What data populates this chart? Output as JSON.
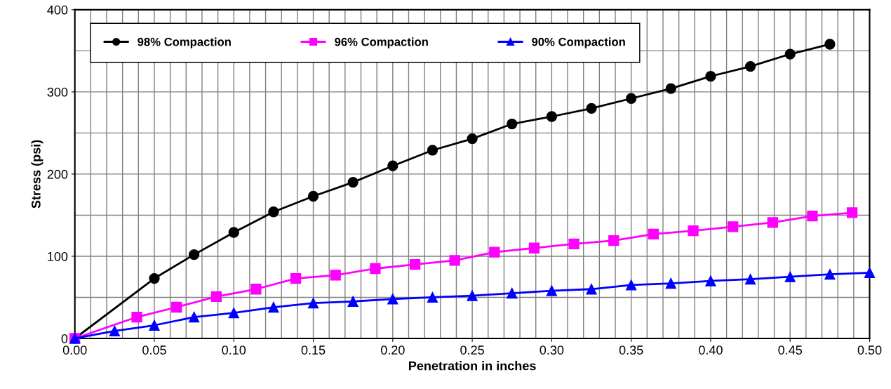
{
  "chart_data": {
    "type": "line",
    "xlabel": "Penetration in inches",
    "ylabel": "Stress (psi)",
    "xlim": [
      0,
      0.5
    ],
    "ylim": [
      0,
      400
    ],
    "xticks": [
      {
        "value": 0,
        "label": "0.00"
      },
      {
        "value": 0.01,
        "label": null
      },
      {
        "value": 0.02,
        "label": null
      },
      {
        "value": 0.03,
        "label": null
      },
      {
        "value": 0.04,
        "label": null
      },
      {
        "value": 0.05,
        "label": "0.05"
      },
      {
        "value": 0.06,
        "label": null
      },
      {
        "value": 0.07,
        "label": null
      },
      {
        "value": 0.08,
        "label": null
      },
      {
        "value": 0.09,
        "label": null
      },
      {
        "value": 0.1,
        "label": "0.10"
      },
      {
        "value": 0.11,
        "label": null
      },
      {
        "value": 0.12,
        "label": null
      },
      {
        "value": 0.13,
        "label": null
      },
      {
        "value": 0.14,
        "label": null
      },
      {
        "value": 0.15,
        "label": "0.15"
      },
      {
        "value": 0.16,
        "label": null
      },
      {
        "value": 0.17,
        "label": null
      },
      {
        "value": 0.18,
        "label": null
      },
      {
        "value": 0.19,
        "label": null
      },
      {
        "value": 0.2,
        "label": "0.20"
      },
      {
        "value": 0.21,
        "label": null
      },
      {
        "value": 0.22,
        "label": null
      },
      {
        "value": 0.23,
        "label": null
      },
      {
        "value": 0.24,
        "label": null
      },
      {
        "value": 0.25,
        "label": "0.25"
      },
      {
        "value": 0.26,
        "label": null
      },
      {
        "value": 0.27,
        "label": null
      },
      {
        "value": 0.28,
        "label": null
      },
      {
        "value": 0.29,
        "label": null
      },
      {
        "value": 0.3,
        "label": "0.30"
      },
      {
        "value": 0.31,
        "label": null
      },
      {
        "value": 0.32,
        "label": null
      },
      {
        "value": 0.33,
        "label": null
      },
      {
        "value": 0.34,
        "label": null
      },
      {
        "value": 0.35,
        "label": "0.35"
      },
      {
        "value": 0.36,
        "label": null
      },
      {
        "value": 0.37,
        "label": null
      },
      {
        "value": 0.38,
        "label": null
      },
      {
        "value": 0.39,
        "label": null
      },
      {
        "value": 0.4,
        "label": "0.40"
      },
      {
        "value": 0.41,
        "label": null
      },
      {
        "value": 0.42,
        "label": null
      },
      {
        "value": 0.43,
        "label": null
      },
      {
        "value": 0.44,
        "label": null
      },
      {
        "value": 0.45,
        "label": "0.45"
      },
      {
        "value": 0.46,
        "label": null
      },
      {
        "value": 0.47,
        "label": null
      },
      {
        "value": 0.48,
        "label": null
      },
      {
        "value": 0.49,
        "label": null
      },
      {
        "value": 0.5,
        "label": "0.50"
      }
    ],
    "yticks": [
      0,
      {
        "value": 50,
        "label": null
      },
      100,
      {
        "value": 150,
        "label": null
      },
      200,
      {
        "value": 250,
        "label": null
      },
      300,
      {
        "value": 350,
        "label": null
      },
      400
    ],
    "grid": true,
    "legend": "top",
    "line_style": "solid",
    "series": [
      {
        "name": "98% Compaction",
        "color": "#000000",
        "marker": "circle",
        "x": [
          0,
          0.05,
          0.075,
          0.1,
          0.125,
          0.15,
          0.175,
          0.2,
          0.225,
          0.25,
          0.275,
          0.3,
          0.325,
          0.35,
          0.375,
          0.4,
          0.425,
          0.45,
          0.475
        ],
        "values": [
          0,
          73,
          102,
          129,
          154,
          173,
          190,
          210,
          229,
          243,
          261,
          270,
          280,
          292,
          304,
          319,
          331,
          346,
          358
        ]
      },
      {
        "name": "96% Compaction",
        "color": "#ff00ff",
        "marker": "square",
        "x": [
          0,
          0.039,
          0.064,
          0.089,
          0.114,
          0.139,
          0.164,
          0.189,
          0.214,
          0.239,
          0.264,
          0.289,
          0.314,
          0.339,
          0.364,
          0.389,
          0.414,
          0.439,
          0.464,
          0.489
        ],
        "values": [
          0,
          26,
          38,
          51,
          60,
          73,
          77,
          85,
          90,
          95,
          105,
          110,
          115,
          119,
          127,
          131,
          136,
          141,
          149,
          153
        ]
      },
      {
        "name": "90% Compaction",
        "color": "#0000ff",
        "marker": "triangle",
        "x": [
          0,
          0.025,
          0.05,
          0.075,
          0.1,
          0.125,
          0.15,
          0.175,
          0.2,
          0.225,
          0.25,
          0.275,
          0.3,
          0.325,
          0.35,
          0.375,
          0.4,
          0.425,
          0.45,
          0.475,
          0.5
        ],
        "values": [
          0,
          9,
          16,
          26,
          31,
          38,
          43,
          45,
          48,
          50,
          52,
          55,
          58,
          60,
          65,
          67,
          70,
          72,
          75,
          78,
          80
        ]
      }
    ]
  }
}
